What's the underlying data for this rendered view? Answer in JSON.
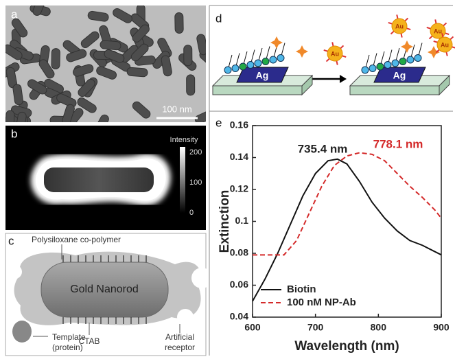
{
  "panels": {
    "a": {
      "label": "a",
      "scale_bar": "100 nm"
    },
    "b": {
      "label": "b",
      "colorbar_title": "Intensity",
      "colorbar_ticks": [
        200,
        100,
        0
      ]
    },
    "c": {
      "label": "c",
      "polymer": "Polysiloxane co-polymer",
      "rod": "Gold Nanorod",
      "template": [
        "Template",
        "(protein)"
      ],
      "ctab": "CTAB",
      "receptor": [
        "Artificial",
        "receptor"
      ]
    },
    "d": {
      "label": "d",
      "substrates": [
        "Ag",
        "Ag"
      ],
      "particles": [
        "Au",
        "Au",
        "Au",
        "Au"
      ]
    },
    "e": {
      "label": "e"
    }
  },
  "chart_data": {
    "type": "line",
    "xlabel": "Wavelength (nm)",
    "ylabel": "Extinction",
    "xlim": [
      600,
      900
    ],
    "xticks": [
      600,
      700,
      800,
      900
    ],
    "ylim": [
      0.04,
      0.16
    ],
    "yticks": [
      0.04,
      0.06,
      0.08,
      0.1,
      0.12,
      0.14,
      0.16
    ],
    "series": [
      {
        "name": "Biotin",
        "color": "#111111",
        "dash": "solid",
        "x": [
          600,
          620,
          640,
          660,
          680,
          700,
          720,
          735,
          750,
          770,
          790,
          810,
          830,
          850,
          870,
          890,
          900
        ],
        "values": [
          0.05,
          0.064,
          0.08,
          0.098,
          0.116,
          0.13,
          0.138,
          0.139,
          0.136,
          0.125,
          0.112,
          0.102,
          0.094,
          0.088,
          0.085,
          0.081,
          0.079
        ]
      },
      {
        "name": "100 nM NP-Ab",
        "color": "#d42a2a",
        "dash": "dashed",
        "x": [
          600,
          650,
          670,
          690,
          710,
          730,
          750,
          770,
          790,
          810,
          830,
          850,
          870,
          890,
          900
        ],
        "values": [
          0.079,
          0.079,
          0.088,
          0.105,
          0.122,
          0.135,
          0.141,
          0.143,
          0.142,
          0.138,
          0.13,
          0.122,
          0.115,
          0.107,
          0.102
        ]
      }
    ],
    "annotations": [
      {
        "text": "735.4 nm",
        "color": "#222222"
      },
      {
        "text": "778.1 nm",
        "color": "#d42a2a"
      }
    ]
  }
}
